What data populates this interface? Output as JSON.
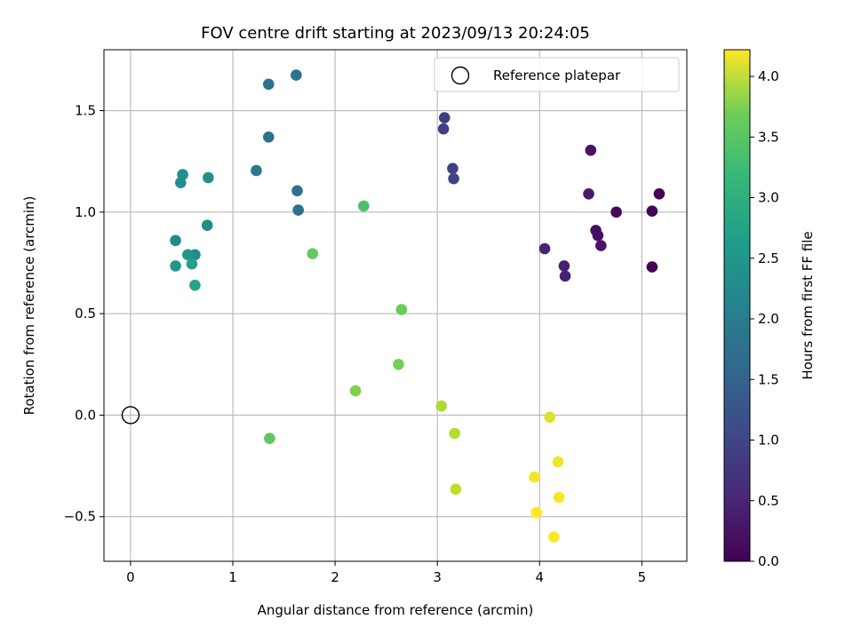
{
  "chart_data": {
    "type": "scatter",
    "title": "FOV centre drift starting at 2023/09/13 20:24:05",
    "xlabel": "Angular distance from reference (arcmin)",
    "ylabel": "Rotation from reference (arcmin)",
    "xlim": [
      -0.26,
      5.44
    ],
    "ylim": [
      -0.72,
      1.8
    ],
    "xticks": [
      0,
      1,
      2,
      3,
      4,
      5
    ],
    "xtick_labels": [
      "0",
      "1",
      "2",
      "3",
      "4",
      "5"
    ],
    "yticks": [
      -0.5,
      0.0,
      0.5,
      1.0,
      1.5
    ],
    "ytick_labels": [
      "−0.5",
      "0.0",
      "0.5",
      "1.0",
      "1.5"
    ],
    "grid": true,
    "legend_position": "top-right",
    "legend": [
      {
        "label": "Reference platepar",
        "marker": "open-circle",
        "color": "#000000"
      }
    ],
    "reference_point": {
      "x": 0.0,
      "y": 0.0
    },
    "colorbar": {
      "label": "Hours from first FF file",
      "colormap": "viridis",
      "range": [
        0.0,
        4.22
      ],
      "ticks": [
        0.0,
        0.5,
        1.0,
        1.5,
        2.0,
        2.5,
        3.0,
        3.5,
        4.0
      ],
      "tick_labels": [
        "0.0",
        "0.5",
        "1.0",
        "1.5",
        "2.0",
        "2.5",
        "3.0",
        "3.5",
        "4.0"
      ]
    },
    "series": [
      {
        "marker": "filled-circle",
        "points": [
          {
            "x": 5.17,
            "y": 1.09,
            "c": 0.02
          },
          {
            "x": 5.1,
            "y": 1.005,
            "c": 0.05
          },
          {
            "x": 5.1,
            "y": 0.73,
            "c": 0.03
          },
          {
            "x": 4.75,
            "y": 1.0,
            "c": 0.1
          },
          {
            "x": 4.5,
            "y": 1.305,
            "c": 0.22
          },
          {
            "x": 4.48,
            "y": 1.09,
            "c": 0.3
          },
          {
            "x": 4.55,
            "y": 0.91,
            "c": 0.18
          },
          {
            "x": 4.57,
            "y": 0.885,
            "c": 0.16
          },
          {
            "x": 4.6,
            "y": 0.835,
            "c": 0.24
          },
          {
            "x": 4.05,
            "y": 0.82,
            "c": 0.42
          },
          {
            "x": 4.24,
            "y": 0.735,
            "c": 0.38
          },
          {
            "x": 4.25,
            "y": 0.685,
            "c": 0.4
          },
          {
            "x": 3.07,
            "y": 1.465,
            "c": 0.75
          },
          {
            "x": 3.06,
            "y": 1.41,
            "c": 0.78
          },
          {
            "x": 3.15,
            "y": 1.215,
            "c": 0.82
          },
          {
            "x": 3.16,
            "y": 1.165,
            "c": 0.85
          },
          {
            "x": 1.62,
            "y": 1.675,
            "c": 1.55
          },
          {
            "x": 1.35,
            "y": 1.63,
            "c": 1.62
          },
          {
            "x": 1.35,
            "y": 1.37,
            "c": 1.6
          },
          {
            "x": 1.23,
            "y": 1.205,
            "c": 1.68
          },
          {
            "x": 1.63,
            "y": 1.105,
            "c": 1.58
          },
          {
            "x": 1.64,
            "y": 1.01,
            "c": 1.56
          },
          {
            "x": 0.51,
            "y": 1.185,
            "c": 2.1
          },
          {
            "x": 0.49,
            "y": 1.145,
            "c": 2.12
          },
          {
            "x": 0.76,
            "y": 1.17,
            "c": 2.08
          },
          {
            "x": 0.75,
            "y": 0.935,
            "c": 2.05
          },
          {
            "x": 0.44,
            "y": 0.86,
            "c": 2.0
          },
          {
            "x": 0.63,
            "y": 0.79,
            "c": 1.98
          },
          {
            "x": 0.56,
            "y": 0.79,
            "c": 2.2
          },
          {
            "x": 0.44,
            "y": 0.735,
            "c": 2.25
          },
          {
            "x": 0.6,
            "y": 0.745,
            "c": 2.4
          },
          {
            "x": 0.63,
            "y": 0.64,
            "c": 2.45
          },
          {
            "x": 2.28,
            "y": 1.03,
            "c": 3.0
          },
          {
            "x": 1.78,
            "y": 0.795,
            "c": 3.2
          },
          {
            "x": 2.65,
            "y": 0.52,
            "c": 3.25
          },
          {
            "x": 2.62,
            "y": 0.25,
            "c": 3.3
          },
          {
            "x": 2.2,
            "y": 0.12,
            "c": 3.38
          },
          {
            "x": 1.36,
            "y": -0.115,
            "c": 3.15
          },
          {
            "x": 3.04,
            "y": 0.045,
            "c": 3.7
          },
          {
            "x": 3.17,
            "y": -0.09,
            "c": 3.75
          },
          {
            "x": 3.18,
            "y": -0.365,
            "c": 3.8
          },
          {
            "x": 4.1,
            "y": -0.01,
            "c": 4.0
          },
          {
            "x": 4.18,
            "y": -0.23,
            "c": 4.12
          },
          {
            "x": 3.95,
            "y": -0.305,
            "c": 4.15
          },
          {
            "x": 4.19,
            "y": -0.405,
            "c": 4.18
          },
          {
            "x": 3.97,
            "y": -0.48,
            "c": 4.2
          },
          {
            "x": 4.14,
            "y": -0.6,
            "c": 4.22
          }
        ]
      }
    ]
  }
}
